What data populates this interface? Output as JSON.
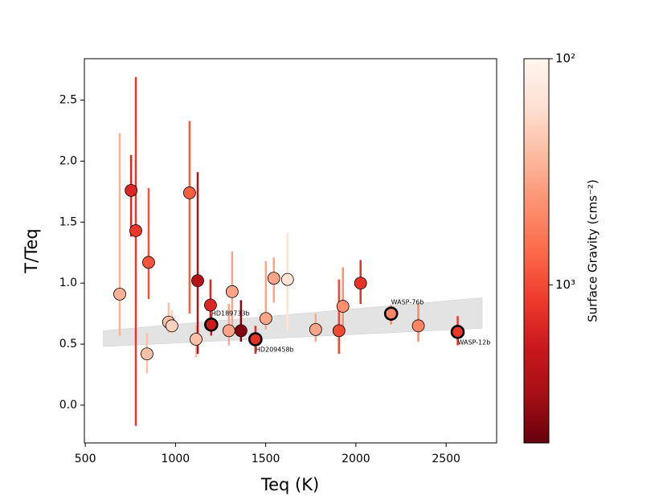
{
  "chart_data": {
    "type": "scatter",
    "xlabel": "Teq (K)",
    "ylabel": "T/Teq",
    "xlim": [
      495,
      2780
    ],
    "ylim": [
      -0.31,
      2.84
    ],
    "xticks": [
      500,
      1000,
      1500,
      2000,
      2500
    ],
    "yticks": [
      {
        "value": 0,
        "label": "0.0"
      },
      {
        "value": 0.5,
        "label": "0.5"
      },
      {
        "value": 1,
        "label": "1.0"
      },
      {
        "value": 1.5,
        "label": "1.5"
      },
      {
        "value": 2,
        "label": "2.0"
      },
      {
        "value": 2.5,
        "label": "2.5"
      }
    ],
    "model_band": {
      "color": "#cccccc",
      "x": [
        600,
        2700
      ],
      "lower": [
        0.48,
        0.63
      ],
      "upper": [
        0.61,
        0.88
      ]
    },
    "series": [
      {
        "x": [
          691,
          754,
          780,
          851,
          842,
          962,
          980,
          1078,
          1114,
          1123,
          1194,
          1198,
          1296,
          1314,
          1363,
          1443,
          1501,
          1545,
          1621,
          1777,
          1906,
          1928,
          2026,
          2195,
          2346,
          2564
        ],
        "y": [
          0.91,
          1.76,
          1.43,
          1.17,
          0.42,
          0.68,
          0.65,
          1.74,
          0.54,
          1.02,
          0.82,
          0.66,
          0.61,
          0.93,
          0.61,
          0.54,
          0.71,
          1.04,
          1.03,
          0.62,
          0.61,
          0.81,
          1.0,
          0.75,
          0.65,
          0.6
        ],
        "err_minus": [
          0.34,
          0.38,
          1.6,
          0.3,
          0.16,
          0.09,
          0.07,
          0.99,
          0.15,
          0.6,
          0.19,
          0.09,
          0.12,
          0.3,
          0.09,
          0.12,
          0.09,
          0.2,
          0.42,
          0.1,
          0.19,
          0.19,
          0.17,
          0.09,
          0.13,
          0.11
        ],
        "err_plus": [
          1.32,
          0.29,
          1.26,
          0.61,
          0.17,
          0.16,
          0.13,
          0.59,
          0.11,
          0.89,
          0.21,
          0.08,
          0.22,
          0.33,
          0.25,
          0.11,
          0.47,
          0.17,
          0.38,
          0.13,
          0.42,
          0.32,
          0.19,
          0.07,
          0.18,
          0.13
        ],
        "gravity": [
          300,
          1500,
          1200,
          900,
          250,
          250,
          200,
          800,
          250,
          2500,
          1500,
          1800,
          350,
          350,
          4000,
          1300,
          350,
          350,
          150,
          350,
          1000,
          450,
          1300,
          500,
          500,
          1200
        ],
        "labels": [
          null,
          null,
          null,
          null,
          null,
          null,
          null,
          null,
          null,
          null,
          null,
          "HD189733b",
          null,
          null,
          null,
          "HD209458b",
          null,
          null,
          null,
          null,
          null,
          null,
          null,
          "WASP-76b",
          null,
          "WASP-12b"
        ]
      }
    ],
    "colorbar": {
      "label": "Surface Gravity (cms⁻²)",
      "scale": "log",
      "lim": [
        100,
        5000
      ],
      "ticks": [
        {
          "value": 100,
          "label": "10²"
        },
        {
          "value": 1000,
          "label": "10³"
        }
      ],
      "colormap": [
        "#fff5f0",
        "#fee0d2",
        "#fcbba1",
        "#fc9272",
        "#fb6a4a",
        "#ef3b2c",
        "#cb181d",
        "#a50f15",
        "#67000d"
      ]
    }
  }
}
